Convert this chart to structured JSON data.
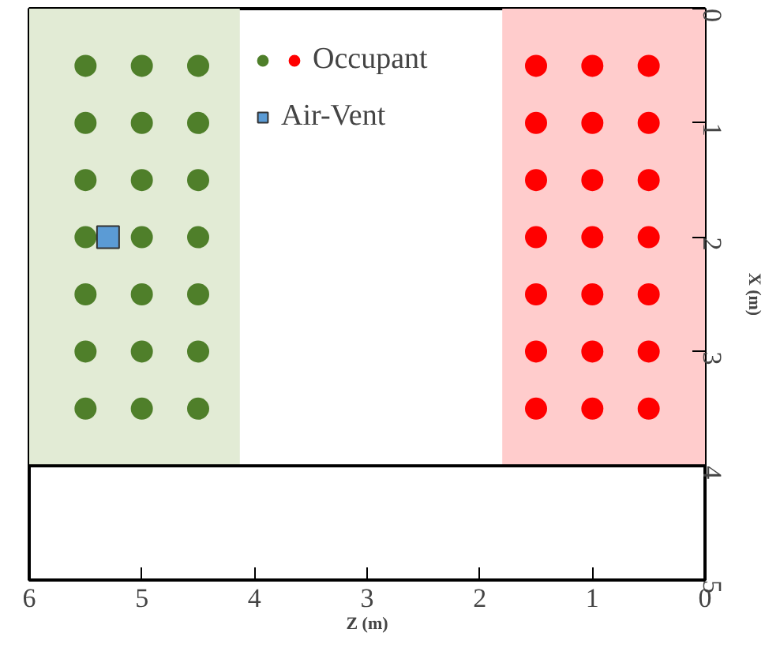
{
  "chart_data": {
    "type": "scatter",
    "xlabel": "Z (m)",
    "y2label": "X (m)",
    "series": [
      {
        "name": "Occupant",
        "colors": [
          "#4f7f2a",
          "#4f7f2a",
          "#4f7f2a",
          "#4f7f2a",
          "#4f7f2a",
          "#4f7f2a",
          "#4f7f2a",
          "#4f7f2a",
          "#4f7f2a",
          "#4f7f2a",
          "#4f7f2a",
          "#4f7f2a",
          "#4f7f2a",
          "#4f7f2a",
          "#4f7f2a",
          "#4f7f2a",
          "#4f7f2a",
          "#4f7f2a",
          "#4f7f2a",
          "#4f7f2a",
          "#4f7f2a",
          "#ff0000",
          "#ff0000",
          "#ff0000",
          "#ff0000",
          "#ff0000",
          "#ff0000",
          "#ff0000",
          "#ff0000",
          "#ff0000",
          "#ff0000",
          "#ff0000",
          "#ff0000",
          "#ff0000",
          "#ff0000",
          "#ff0000",
          "#ff0000",
          "#ff0000",
          "#ff0000",
          "#ff0000",
          "#ff0000",
          "#ff0000"
        ],
        "marker": "circle",
        "x": [
          5.5,
          5.0,
          4.5,
          5.5,
          5.0,
          4.5,
          5.5,
          5.0,
          4.5,
          5.5,
          5.0,
          4.5,
          5.5,
          5.0,
          4.5,
          5.5,
          5.0,
          4.5,
          5.5,
          5.0,
          4.5,
          1.5,
          1.0,
          0.5,
          1.5,
          1.0,
          0.5,
          1.5,
          1.0,
          0.5,
          1.5,
          1.0,
          0.5,
          1.5,
          1.0,
          0.5,
          1.5,
          1.0,
          0.5,
          1.5,
          1.0,
          0.5
        ],
        "values": [
          0.5,
          0.5,
          0.5,
          1.0,
          1.0,
          1.0,
          1.5,
          1.5,
          1.5,
          2.0,
          2.0,
          2.0,
          2.5,
          2.5,
          2.5,
          3.0,
          3.0,
          3.0,
          3.5,
          3.5,
          3.5,
          0.5,
          0.5,
          0.5,
          1.0,
          1.0,
          1.0,
          1.5,
          1.5,
          1.5,
          2.0,
          2.0,
          2.0,
          2.5,
          2.5,
          2.5,
          3.0,
          3.0,
          3.0,
          3.5,
          3.5,
          3.5
        ]
      },
      {
        "name": "Air-Vent",
        "color": "#5b9bd5",
        "marker": "square",
        "x": [
          5.3
        ],
        "values": [
          2.0
        ]
      }
    ],
    "xlim": [
      6,
      0
    ],
    "xticks": [
      6,
      5,
      4,
      3,
      2,
      1,
      0
    ],
    "ylim": [
      5,
      0
    ],
    "yticks": [
      0,
      1,
      2,
      3,
      4,
      5
    ],
    "bands": [
      {
        "axis": "x",
        "from": 6,
        "to": 4.13,
        "color": "#e2ebd5"
      },
      {
        "axis": "x",
        "from": 1.8,
        "to": 0,
        "color": "#ffcccc"
      }
    ],
    "ref_lines": [
      {
        "axis": "y",
        "value": 4
      }
    ],
    "legend": "top",
    "grid": false
  }
}
